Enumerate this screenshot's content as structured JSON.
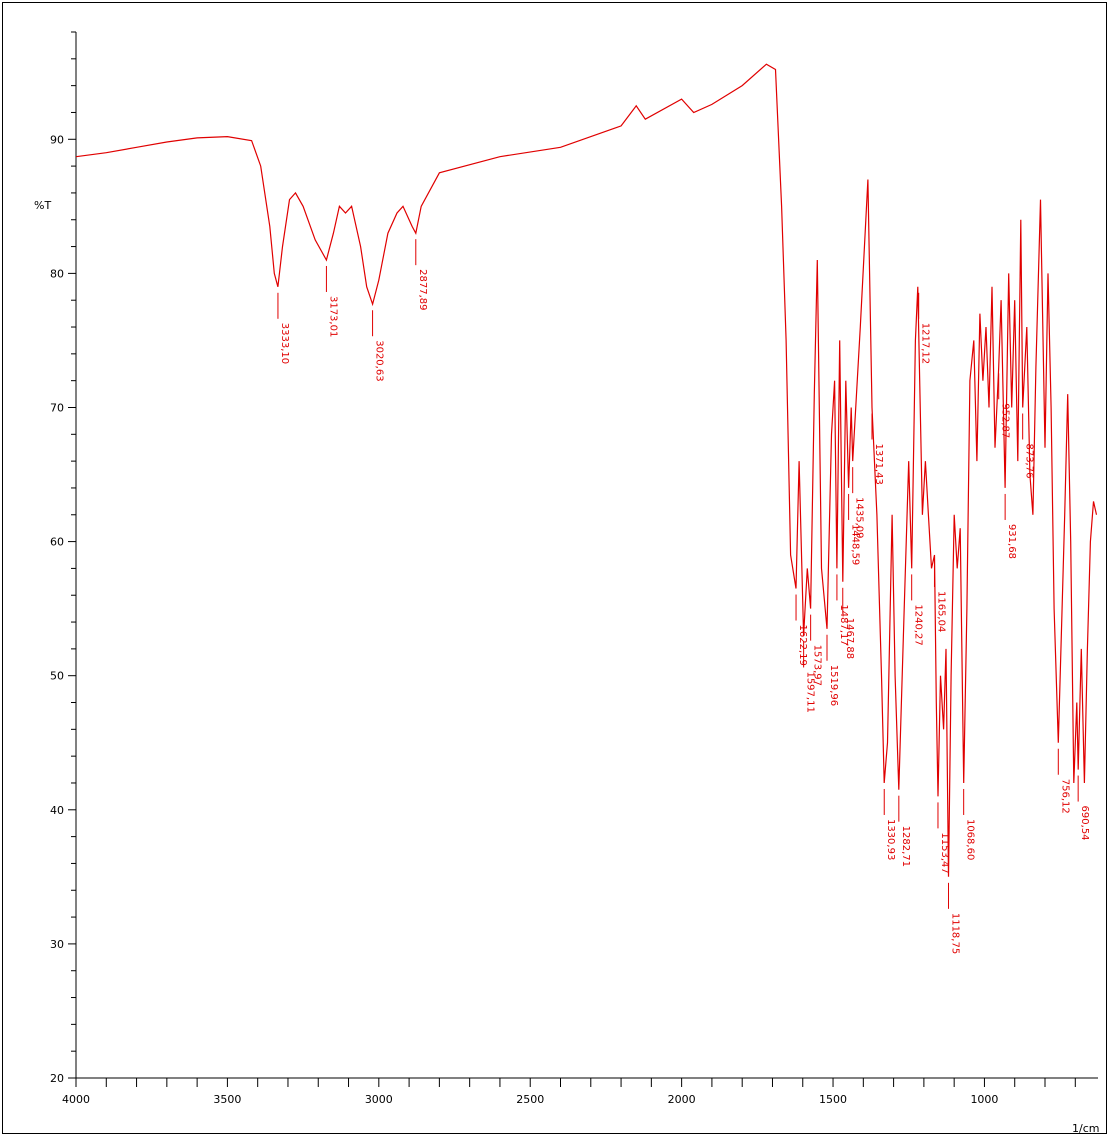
{
  "chart_data": {
    "type": "line",
    "title": "",
    "ylabel": "%T",
    "xlabel": "1/cm",
    "xlim": [
      4000,
      625
    ],
    "ylim": [
      20,
      98
    ],
    "y_ticks": [
      "20",
      "30",
      "40",
      "50",
      "60",
      "70",
      "80",
      "90"
    ],
    "x_ticks": [
      "4000",
      "3500",
      "3000",
      "2500",
      "2000",
      "1500",
      "1000"
    ],
    "line_color": "#e00000",
    "series": [
      {
        "values": [
          [
            4000,
            88.7
          ],
          [
            3900,
            89.0
          ],
          [
            3800,
            89.4
          ],
          [
            3700,
            89.8
          ],
          [
            3600,
            90.1
          ],
          [
            3500,
            90.2
          ],
          [
            3420,
            89.9
          ],
          [
            3390,
            88.0
          ],
          [
            3360,
            83.5
          ],
          [
            3345,
            80.0
          ],
          [
            3333.1,
            79.0
          ],
          [
            3318,
            82.0
          ],
          [
            3295,
            85.5
          ],
          [
            3275,
            86.0
          ],
          [
            3250,
            85.0
          ],
          [
            3210,
            82.5
          ],
          [
            3173.01,
            81.0
          ],
          [
            3150,
            83.0
          ],
          [
            3130,
            85.0
          ],
          [
            3110,
            84.5
          ],
          [
            3090,
            85.0
          ],
          [
            3060,
            82.0
          ],
          [
            3040,
            79.0
          ],
          [
            3020.63,
            77.7
          ],
          [
            3000,
            79.5
          ],
          [
            2970,
            83.0
          ],
          [
            2940,
            84.5
          ],
          [
            2920,
            85.0
          ],
          [
            2900,
            84.0
          ],
          [
            2890,
            83.5
          ],
          [
            2877.89,
            83.0
          ],
          [
            2860,
            85.0
          ],
          [
            2800,
            87.5
          ],
          [
            2600,
            88.7
          ],
          [
            2400,
            89.4
          ],
          [
            2200,
            91.0
          ],
          [
            2150,
            92.5
          ],
          [
            2120,
            91.5
          ],
          [
            2000,
            93.0
          ],
          [
            1960,
            92.0
          ],
          [
            1900,
            92.6
          ],
          [
            1800,
            94.0
          ],
          [
            1720,
            95.6
          ],
          [
            1690,
            95.2
          ],
          [
            1670,
            85.0
          ],
          [
            1655,
            75.0
          ],
          [
            1640,
            59.0
          ],
          [
            1622.19,
            56.5
          ],
          [
            1612,
            66.0
          ],
          [
            1597.11,
            53.0
          ],
          [
            1585,
            58.0
          ],
          [
            1573.97,
            55.0
          ],
          [
            1562,
            71.0
          ],
          [
            1552,
            81.0
          ],
          [
            1538,
            58.0
          ],
          [
            1519.96,
            53.5
          ],
          [
            1505,
            68.0
          ],
          [
            1495,
            72.0
          ],
          [
            1487.17,
            58.0
          ],
          [
            1478,
            75.0
          ],
          [
            1467.88,
            57.0
          ],
          [
            1458,
            72.0
          ],
          [
            1448.59,
            64.0
          ],
          [
            1440,
            70.0
          ],
          [
            1435.09,
            66.0
          ],
          [
            1410,
            76.0
          ],
          [
            1385,
            87.0
          ],
          [
            1371.43,
            70.0
          ],
          [
            1355,
            62.0
          ],
          [
            1340,
            50.0
          ],
          [
            1330.93,
            42.0
          ],
          [
            1320,
            45.0
          ],
          [
            1305,
            62.0
          ],
          [
            1295,
            50.0
          ],
          [
            1282.71,
            41.5
          ],
          [
            1265,
            55.0
          ],
          [
            1250,
            66.0
          ],
          [
            1240.27,
            58.0
          ],
          [
            1228,
            75.0
          ],
          [
            1220,
            79.0
          ],
          [
            1205,
            62.0
          ],
          [
            1195,
            66.0
          ],
          [
            1185,
            62.0
          ],
          [
            1175,
            58.0
          ],
          [
            1165.04,
            59.0
          ],
          [
            1159,
            48.0
          ],
          [
            1153.47,
            41.0
          ],
          [
            1145,
            50.0
          ],
          [
            1135,
            46.0
          ],
          [
            1127.12,
            52.0
          ],
          [
            1118.75,
            35.0
          ],
          [
            1110,
            50.0
          ],
          [
            1100,
            62.0
          ],
          [
            1090,
            58.0
          ],
          [
            1080,
            61.0
          ],
          [
            1068.6,
            42.0
          ],
          [
            1058,
            55.0
          ],
          [
            1048,
            72.0
          ],
          [
            1035,
            75.0
          ],
          [
            1025,
            66.0
          ],
          [
            1015,
            77.0
          ],
          [
            1005,
            72.0
          ],
          [
            995,
            76.0
          ],
          [
            985,
            70.0
          ],
          [
            975,
            79.0
          ],
          [
            965,
            67.0
          ],
          [
            952.87,
            73.0
          ],
          [
            945,
            78.0
          ],
          [
            931.68,
            64.0
          ],
          [
            920,
            80.0
          ],
          [
            910,
            70.0
          ],
          [
            900,
            78.0
          ],
          [
            890,
            66.0
          ],
          [
            880,
            84.0
          ],
          [
            873.76,
            70.0
          ],
          [
            860,
            76.0
          ],
          [
            850,
            65.0
          ],
          [
            840,
            62.0
          ],
          [
            830,
            73.0
          ],
          [
            815,
            85.5
          ],
          [
            800,
            67.0
          ],
          [
            790,
            80.0
          ],
          [
            780,
            70.0
          ],
          [
            770,
            55.0
          ],
          [
            756.12,
            45.0
          ],
          [
            745,
            54.0
          ],
          [
            735,
            62.0
          ],
          [
            725,
            71.0
          ],
          [
            715,
            60.0
          ],
          [
            705,
            42.0
          ],
          [
            695,
            48.0
          ],
          [
            690.54,
            43.0
          ],
          [
            680,
            52.0
          ],
          [
            670,
            42.0
          ],
          [
            660,
            52.0
          ],
          [
            650,
            60.0
          ],
          [
            640,
            63.0
          ],
          [
            630,
            62.0
          ]
        ]
      }
    ],
    "peak_labels": [
      {
        "x": 3333.1,
        "text": "3333,10"
      },
      {
        "x": 3173.01,
        "text": "3173,01"
      },
      {
        "x": 3020.63,
        "text": "3020,63"
      },
      {
        "x": 2877.89,
        "text": "2877,89"
      },
      {
        "x": 1622.19,
        "text": "1622,19"
      },
      {
        "x": 1597.11,
        "text": "1597,11"
      },
      {
        "x": 1573.97,
        "text": "1573,97"
      },
      {
        "x": 1519.96,
        "text": "1519,96"
      },
      {
        "x": 1487.17,
        "text": "1487,17"
      },
      {
        "x": 1467.88,
        "text": "1467,88"
      },
      {
        "x": 1448.59,
        "text": "1448,59"
      },
      {
        "x": 1435.09,
        "text": "1435,09"
      },
      {
        "x": 1371.43,
        "text": "1371,43"
      },
      {
        "x": 1330.93,
        "text": "1330,93"
      },
      {
        "x": 1282.71,
        "text": "1282,71"
      },
      {
        "x": 1240.27,
        "text": "1240,27"
      },
      {
        "x": 1217.12,
        "text": "1217,12"
      },
      {
        "x": 1165.04,
        "text": "1165,04"
      },
      {
        "x": 1153.47,
        "text": "1153,47"
      },
      {
        "x": 1118.75,
        "text": "1118,75"
      },
      {
        "x": 1068.6,
        "text": "1068,60"
      },
      {
        "x": 952.87,
        "text": "952,87"
      },
      {
        "x": 931.68,
        "text": "931,68"
      },
      {
        "x": 873.76,
        "text": "873,76"
      },
      {
        "x": 756.12,
        "text": "756,12"
      },
      {
        "x": 690.54,
        "text": "690,54"
      }
    ]
  }
}
